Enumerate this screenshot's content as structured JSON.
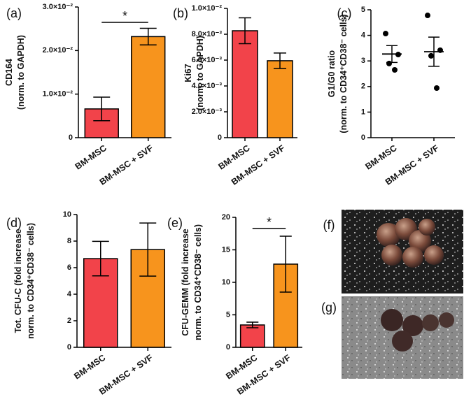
{
  "chart_data": [
    {
      "type": "bar",
      "label": "(a)",
      "ylabel": [
        "CD164",
        "(norm. to GAPDH)"
      ],
      "categories": [
        "BM-MSC",
        "BM-MSC + SVF"
      ],
      "values": [
        0.0066,
        0.0232
      ],
      "errors": [
        0.0027,
        0.0019
      ],
      "colors": [
        "#f2434a",
        "#f7941d"
      ],
      "ylim": [
        0,
        0.03
      ],
      "yticks": [
        0,
        {
          "value": 0.01,
          "label": "1.0×10⁻²"
        },
        {
          "value": 0.02,
          "label": "2.0×10⁻²"
        },
        {
          "value": 0.03,
          "label": "3.0×10⁻²"
        }
      ],
      "significance": "*"
    },
    {
      "type": "bar",
      "label": "(b)",
      "ylabel": [
        "Ki67",
        "(norm. to GAPDH)"
      ],
      "categories": [
        "BM-MSC",
        "BM-MSC + SVF"
      ],
      "values": [
        0.00827,
        0.00595
      ],
      "errors": [
        0.001,
        0.0006
      ],
      "colors": [
        "#f2434a",
        "#f7941d"
      ],
      "ylim": [
        0,
        0.01
      ],
      "yticks": [
        0,
        {
          "value": 0.002,
          "label": "2.0×10⁻³"
        },
        {
          "value": 0.004,
          "label": "4.0×10⁻³"
        },
        {
          "value": 0.006,
          "label": "6.0×10⁻³"
        },
        {
          "value": 0.008,
          "label": "8.0×10⁻³"
        },
        {
          "value": 0.01,
          "label": "1.0×10⁻²"
        }
      ]
    },
    {
      "type": "dot",
      "label": "(c)",
      "ylabel": [
        "G1/G0 ratio",
        "(norm. to CD34⁺CD38⁻ cells)"
      ],
      "categories": [
        "BM-MSC",
        "BM-MSC + SVF"
      ],
      "points": [
        [
          4.07,
          3.25,
          2.9,
          2.65
        ],
        [
          4.78,
          3.42,
          3.2,
          1.94
        ]
      ],
      "values": [
        3.27,
        3.36
      ],
      "errors": [
        0.33,
        0.57
      ],
      "color": "#000000",
      "ylim": [
        0,
        5
      ],
      "yticks": [
        0,
        1,
        2,
        3,
        4,
        5
      ]
    },
    {
      "type": "bar",
      "label": "(d)",
      "ylabel": [
        "Tot. CFU-C (fold increase",
        "norm. to CD34⁺CD38⁻ cells)"
      ],
      "categories": [
        "BM-MSC",
        "BM-MSC + SVF"
      ],
      "values": [
        6.68,
        7.36
      ],
      "errors": [
        1.3,
        2.0
      ],
      "colors": [
        "#f2434a",
        "#f7941d"
      ],
      "ylim": [
        0,
        10
      ],
      "yticks": [
        0,
        2,
        4,
        6,
        8,
        10
      ]
    },
    {
      "type": "bar",
      "label": "(e)",
      "ylabel": [
        "CFU-GEMM (fold increase",
        "norm. to CD34⁺CD38⁻ cells)"
      ],
      "categories": [
        "BM-MSC",
        "BM-MSC + SVF"
      ],
      "values": [
        3.44,
        12.8
      ],
      "errors": [
        0.43,
        4.3
      ],
      "colors": [
        "#f2434a",
        "#f7941d"
      ],
      "ylim": [
        0,
        20
      ],
      "yticks": [
        0,
        5,
        10,
        15,
        20
      ],
      "significance": "*"
    }
  ],
  "images": [
    {
      "label": "(f)"
    },
    {
      "label": "(g)"
    }
  ]
}
